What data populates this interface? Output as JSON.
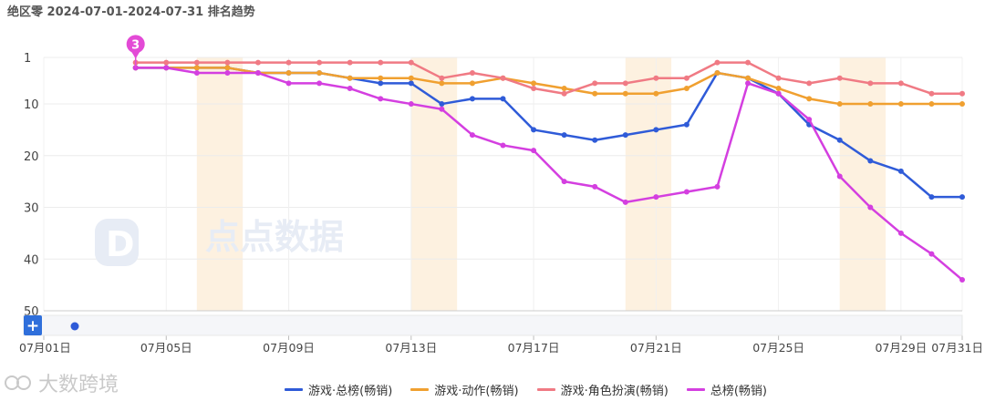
{
  "title": "绝区零 2024-07-01-2024-07-31 排名趋势",
  "watermark_center": "点点数据",
  "watermark_bottom": "大数跨境",
  "zoom_plus_label": "+",
  "chart_data": {
    "type": "line",
    "y_reversed": true,
    "ylim": [
      1,
      50
    ],
    "yticks": [
      1,
      10,
      20,
      30,
      40,
      50
    ],
    "xlim": [
      1,
      31
    ],
    "xtick_days": [
      1,
      5,
      9,
      13,
      17,
      21,
      25,
      29,
      31
    ],
    "xtick_labels": [
      "07月01日",
      "07月05日",
      "07月09日",
      "07月13日",
      "07月17日",
      "07月21日",
      "07月25日",
      "07月29日",
      "07月31日"
    ],
    "highlight_ranges": [
      [
        6,
        7.5
      ],
      [
        13,
        14.5
      ],
      [
        20,
        21.5
      ],
      [
        27,
        28.5
      ]
    ],
    "annotation": {
      "label": "3",
      "day": 4,
      "color": "#e34ad6"
    },
    "x": [
      4,
      5,
      6,
      7,
      8,
      9,
      10,
      11,
      12,
      13,
      14,
      15,
      16,
      17,
      18,
      19,
      20,
      21,
      22,
      23,
      24,
      25,
      26,
      27,
      28,
      29,
      30,
      31
    ],
    "series": [
      {
        "name": "游戏·总榜(畅销)",
        "color": "#2f5bd8",
        "values": [
          3,
          3,
          3,
          3,
          4,
          4,
          4,
          5,
          6,
          6,
          10,
          9,
          9,
          15,
          16,
          17,
          16,
          15,
          14,
          4,
          5,
          8,
          14,
          17,
          21,
          23,
          28,
          28
        ]
      },
      {
        "name": "游戏·动作(畅销)",
        "color": "#f0a030",
        "values": [
          3,
          3,
          3,
          3,
          4,
          4,
          4,
          5,
          5,
          5,
          6,
          6,
          5,
          6,
          7,
          8,
          8,
          8,
          7,
          4,
          5,
          7,
          9,
          10,
          10,
          10,
          10,
          10
        ]
      },
      {
        "name": "游戏·角色扮演(畅销)",
        "color": "#f07a84",
        "values": [
          2,
          2,
          2,
          2,
          2,
          2,
          2,
          2,
          2,
          2,
          5,
          4,
          5,
          7,
          8,
          6,
          6,
          5,
          5,
          2,
          2,
          5,
          6,
          5,
          6,
          6,
          8,
          8
        ]
      },
      {
        "name": "总榜(畅销)",
        "color": "#d43fe0",
        "values": [
          3,
          3,
          4,
          4,
          4,
          6,
          6,
          7,
          9,
          10,
          11,
          16,
          18,
          19,
          25,
          26,
          29,
          28,
          27,
          26,
          6,
          8,
          13,
          24,
          30,
          35,
          39,
          44
        ]
      }
    ]
  }
}
